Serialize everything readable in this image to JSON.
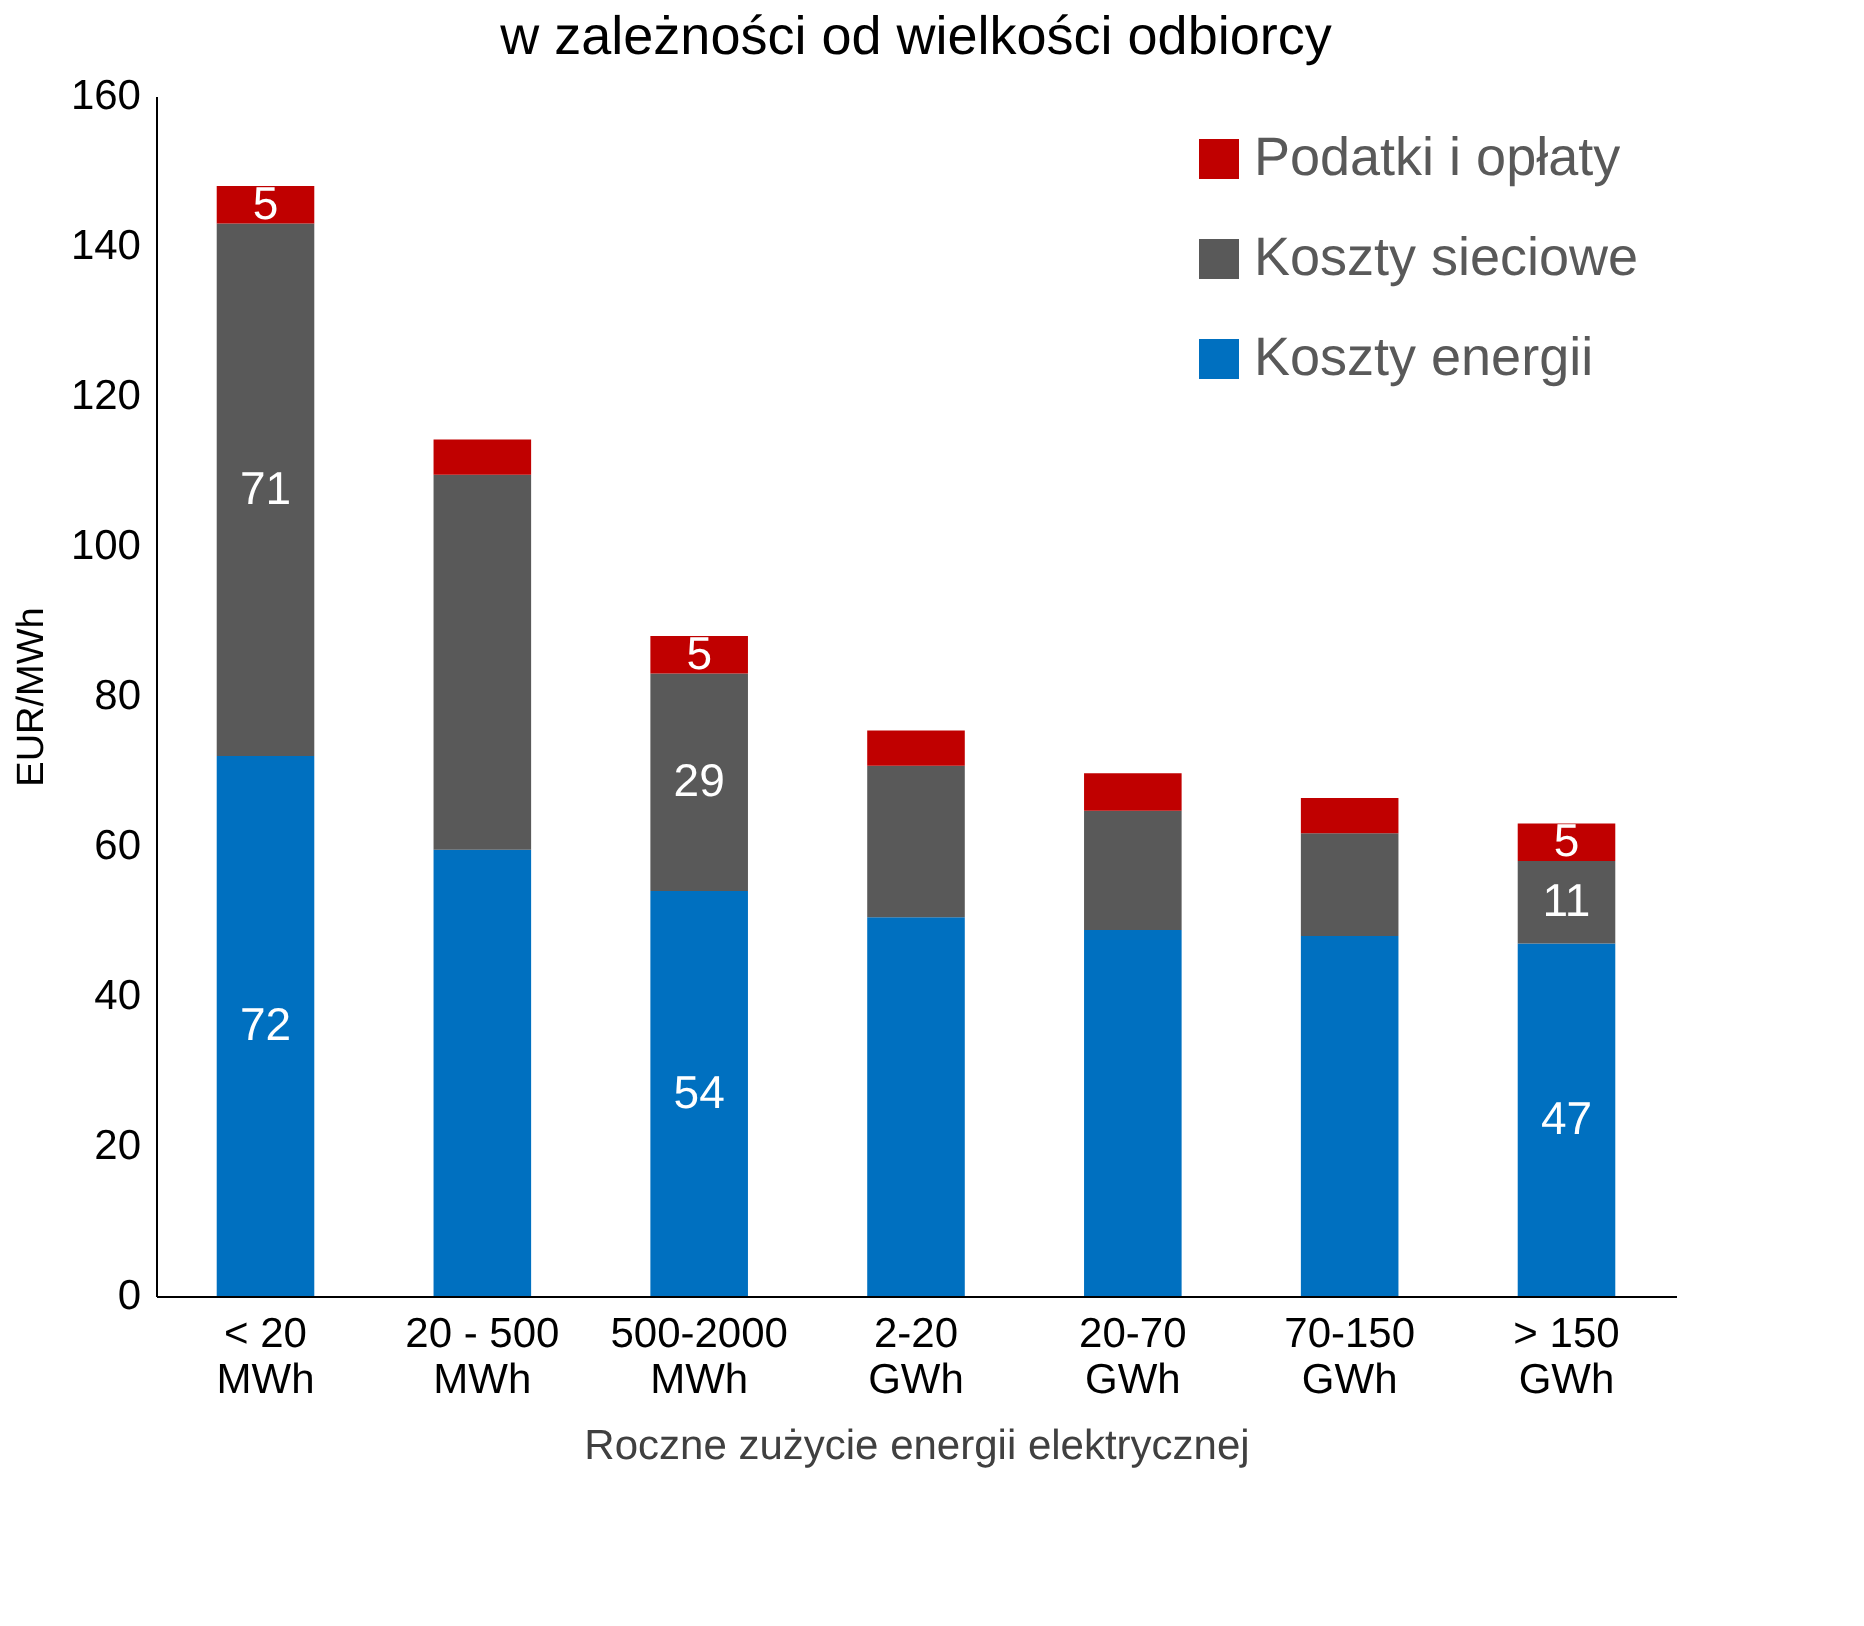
{
  "chart_data": {
    "type": "bar",
    "stacked": true,
    "title": "w zależności od wielkości odbiorcy",
    "xlabel": "Roczne zużycie energii elektrycznej",
    "ylabel": "EUR/MWh",
    "categories": [
      "< 20\nMWh",
      "20 - 500\nMWh",
      "500-2000\nMWh",
      "2-20\nGWh",
      "20-70\nGWh",
      "70-150\nGWh",
      "> 150\nGWh"
    ],
    "series": [
      {
        "name": "Koszty energii",
        "color": "#0070c0",
        "values": [
          72,
          59.5,
          54,
          50.5,
          48.8,
          48,
          47
        ],
        "value_labels": [
          "72",
          null,
          "54",
          null,
          null,
          null,
          "47"
        ]
      },
      {
        "name": "Koszty sieciowe",
        "color": "#595959",
        "values": [
          71,
          50,
          29,
          20.2,
          15.9,
          13.7,
          11
        ],
        "value_labels": [
          "71",
          null,
          "29",
          null,
          null,
          null,
          "11"
        ]
      },
      {
        "name": "Podatki i opłaty",
        "color": "#c00000",
        "values": [
          5,
          4.7,
          5,
          4.7,
          5,
          4.7,
          5
        ],
        "value_labels": [
          "5",
          null,
          "5",
          null,
          null,
          null,
          "5"
        ]
      }
    ],
    "ylim": [
      0,
      160
    ],
    "yticks": [
      0,
      20,
      40,
      60,
      80,
      100,
      120,
      140,
      160
    ],
    "grid": false,
    "legend": "top right"
  }
}
